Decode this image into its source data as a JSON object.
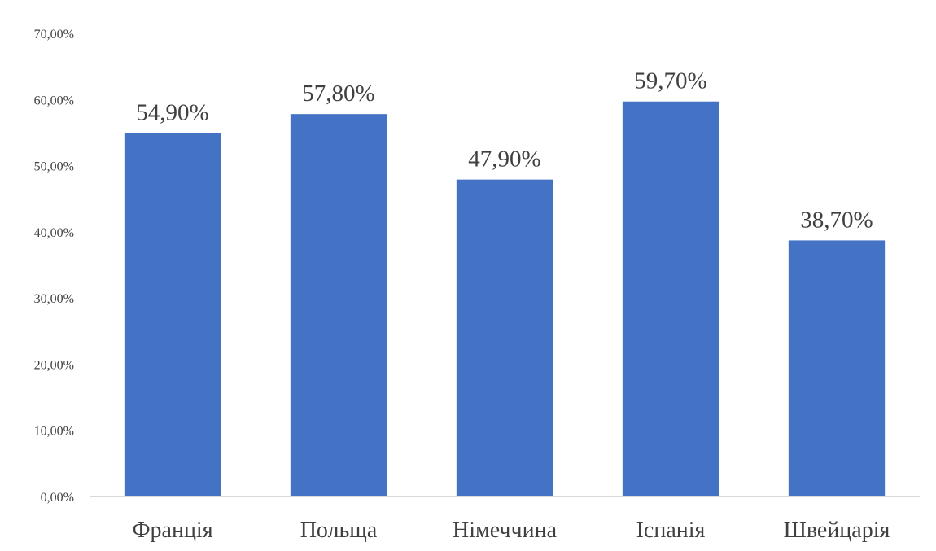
{
  "chart_data": {
    "type": "bar",
    "categories": [
      "Франція",
      "Польща",
      "Німеччина",
      "Іспанія",
      "Швейцарія"
    ],
    "values": [
      54.9,
      57.8,
      47.9,
      59.7,
      38.7
    ],
    "data_labels": [
      "54,90%",
      "57,80%",
      "47,90%",
      "59,70%",
      "38,70%"
    ],
    "title": "",
    "xlabel": "",
    "ylabel": "",
    "ylim": [
      0,
      70
    ],
    "y_ticks": [
      0,
      10,
      20,
      30,
      40,
      50,
      60,
      70
    ],
    "y_tick_labels": [
      "0,00%",
      "10,00%",
      "20,00%",
      "30,00%",
      "40,00%",
      "50,00%",
      "60,00%",
      "70,00%"
    ],
    "grid": false,
    "legend": "none",
    "bar_color": "#4472c4"
  }
}
